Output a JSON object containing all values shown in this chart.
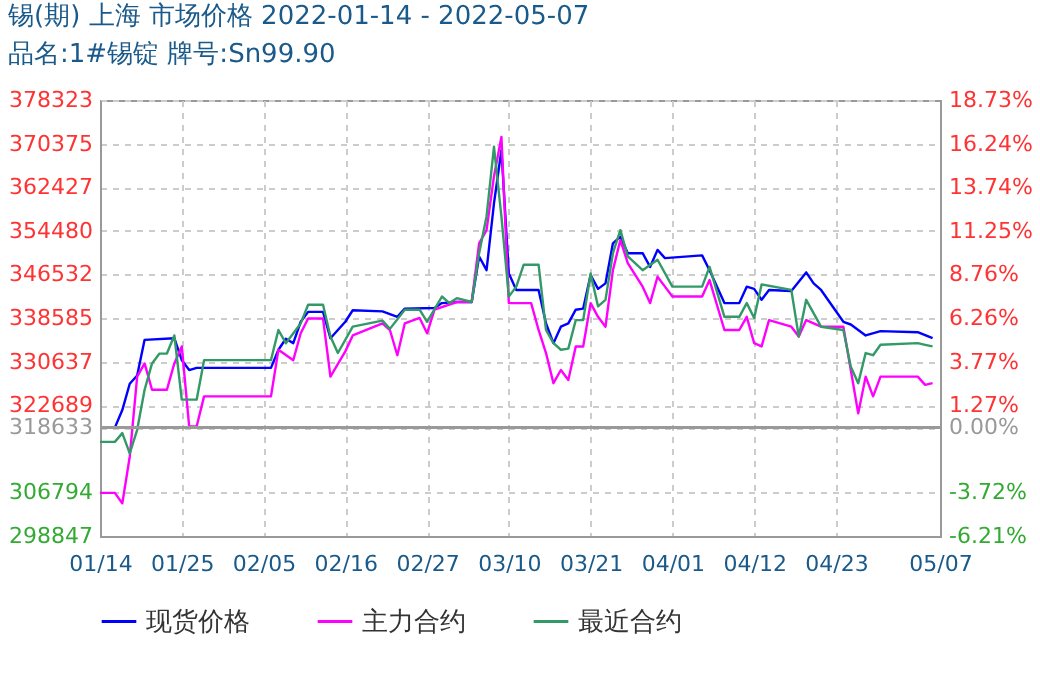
{
  "chart_data": {
    "type": "line",
    "title": "锡(期) 上海 市场价格 2022-01-14 - 2022-05-07",
    "subtitle": "品名:1#锡锭 牌号:Sn99.90",
    "xlim": [
      "2022-01-14",
      "2022-05-07"
    ],
    "xticks": [
      {
        "value": "2022-01-14",
        "label": "01/14"
      },
      {
        "value": "2022-01-25",
        "label": "01/25"
      },
      {
        "value": "2022-02-05",
        "label": "02/05"
      },
      {
        "value": "2022-02-16",
        "label": "02/16"
      },
      {
        "value": "2022-02-27",
        "label": "02/27"
      },
      {
        "value": "2022-03-10",
        "label": "03/10"
      },
      {
        "value": "2022-03-21",
        "label": "03/21"
      },
      {
        "value": "2022-04-01",
        "label": "04/01"
      },
      {
        "value": "2022-04-12",
        "label": "04/12"
      },
      {
        "value": "2022-04-23",
        "label": "04/23"
      },
      {
        "value": "2022-05-07",
        "label": "05/07"
      }
    ],
    "ylim": [
      298847,
      378323
    ],
    "yticks": [
      298847,
      306794,
      318633,
      322689,
      330637,
      338585,
      346532,
      354480,
      362427,
      370375,
      378323
    ],
    "y2lim": [
      -6.21,
      18.73
    ],
    "y2ticks": [
      {
        "value": -6.21,
        "label": "-6.21%"
      },
      {
        "value": -3.72,
        "label": "-3.72%"
      },
      {
        "value": 0,
        "label": "0.00%"
      },
      {
        "value": 1.27,
        "label": "1.27%"
      },
      {
        "value": 3.77,
        "label": "3.77%"
      },
      {
        "value": 6.26,
        "label": "6.26%"
      },
      {
        "value": 8.76,
        "label": "8.76%"
      },
      {
        "value": 11.25,
        "label": "11.25%"
      },
      {
        "value": 13.74,
        "label": "13.74%"
      },
      {
        "value": 16.24,
        "label": "16.24%"
      },
      {
        "value": 18.73,
        "label": "18.73%"
      }
    ],
    "ref_lines": [
      {
        "axis": "y2",
        "value": 0,
        "color": "#999999"
      }
    ],
    "grid": true,
    "legend": "bottom",
    "marker": "none",
    "line_style": "solid",
    "series": [
      {
        "name": "现货价格",
        "color": "#0000ff",
        "x": [
          "2022-01-14",
          "2022-01-16",
          "2022-01-17",
          "2022-01-18",
          "2022-01-19",
          "2022-01-20",
          "2022-01-24",
          "2022-01-25",
          "2022-01-26",
          "2022-01-27",
          "2022-02-06",
          "2022-02-07",
          "2022-02-08",
          "2022-02-09",
          "2022-02-10",
          "2022-02-11",
          "2022-02-13",
          "2022-02-14",
          "2022-02-16",
          "2022-02-17",
          "2022-02-21",
          "2022-02-23",
          "2022-02-24",
          "2022-02-28",
          "2022-03-01",
          "2022-03-03",
          "2022-03-05",
          "2022-03-06",
          "2022-03-07",
          "2022-03-08",
          "2022-03-09",
          "2022-03-10",
          "2022-03-11",
          "2022-03-14",
          "2022-03-15",
          "2022-03-16",
          "2022-03-17",
          "2022-03-18",
          "2022-03-19",
          "2022-03-20",
          "2022-03-21",
          "2022-03-22",
          "2022-03-23",
          "2022-03-24",
          "2022-03-25",
          "2022-03-26",
          "2022-03-28",
          "2022-03-29",
          "2022-03-30",
          "2022-03-31",
          "2022-04-05",
          "2022-04-06",
          "2022-04-08",
          "2022-04-10",
          "2022-04-11",
          "2022-04-12",
          "2022-04-13",
          "2022-04-14",
          "2022-04-17",
          "2022-04-19",
          "2022-04-20",
          "2022-04-21",
          "2022-04-24",
          "2022-04-25",
          "2022-04-27",
          "2022-04-29",
          "2022-05-04",
          "2022-05-06"
        ],
        "values": [
          318600,
          318600,
          321800,
          326600,
          328100,
          334600,
          334900,
          330900,
          329100,
          329500,
          329500,
          332800,
          334800,
          334000,
          337900,
          339700,
          339700,
          334900,
          337900,
          340000,
          339800,
          338800,
          340300,
          340400,
          341300,
          341500,
          341500,
          349800,
          347300,
          359500,
          369200,
          346700,
          343700,
          343700,
          337600,
          334000,
          337000,
          337600,
          340100,
          340300,
          346400,
          343900,
          344900,
          352200,
          353400,
          350400,
          350400,
          347900,
          351000,
          349500,
          350000,
          347300,
          341300,
          341300,
          344300,
          343900,
          341900,
          343700,
          343500,
          346900,
          344900,
          343700,
          337900,
          337400,
          335400,
          336200,
          336000,
          334900
        ]
      },
      {
        "name": "主力合约",
        "color": "#ff00ff",
        "x": [
          "2022-01-14",
          "2022-01-16",
          "2022-01-17",
          "2022-01-18",
          "2022-01-19",
          "2022-01-20",
          "2022-01-21",
          "2022-01-23",
          "2022-01-24",
          "2022-01-25",
          "2022-01-26",
          "2022-01-27",
          "2022-01-28",
          "2022-02-06",
          "2022-02-07",
          "2022-02-09",
          "2022-02-10",
          "2022-02-11",
          "2022-02-13",
          "2022-02-14",
          "2022-02-16",
          "2022-02-17",
          "2022-02-21",
          "2022-02-22",
          "2022-02-23",
          "2022-02-24",
          "2022-02-26",
          "2022-02-27",
          "2022-02-28",
          "2022-03-03",
          "2022-03-05",
          "2022-03-06",
          "2022-03-07",
          "2022-03-08",
          "2022-03-09",
          "2022-03-10",
          "2022-03-13",
          "2022-03-14",
          "2022-03-15",
          "2022-03-16",
          "2022-03-17",
          "2022-03-18",
          "2022-03-19",
          "2022-03-20",
          "2022-03-21",
          "2022-03-22",
          "2022-03-23",
          "2022-03-24",
          "2022-03-25",
          "2022-03-26",
          "2022-03-28",
          "2022-03-29",
          "2022-03-30",
          "2022-03-31",
          "2022-04-01",
          "2022-04-05",
          "2022-04-06",
          "2022-04-08",
          "2022-04-10",
          "2022-04-11",
          "2022-04-12",
          "2022-04-13",
          "2022-04-14",
          "2022-04-17",
          "2022-04-18",
          "2022-04-19",
          "2022-04-21",
          "2022-04-24",
          "2022-04-25",
          "2022-04-26",
          "2022-04-27",
          "2022-04-28",
          "2022-04-29",
          "2022-05-04",
          "2022-05-05",
          "2022-05-06"
        ],
        "values": [
          306700,
          306700,
          304800,
          313300,
          327900,
          330300,
          325500,
          325500,
          330300,
          333400,
          318800,
          318800,
          324300,
          324300,
          332800,
          330900,
          335800,
          338500,
          338500,
          327900,
          332500,
          335400,
          337600,
          336400,
          331800,
          337600,
          338600,
          335800,
          340100,
          341500,
          341500,
          352200,
          354600,
          364400,
          371600,
          341300,
          341300,
          336400,
          332200,
          326700,
          329100,
          327300,
          333400,
          333400,
          341300,
          338800,
          337000,
          347300,
          352800,
          348600,
          344300,
          341300,
          346100,
          344300,
          342500,
          342500,
          345500,
          336400,
          336400,
          338800,
          334000,
          333400,
          338200,
          337000,
          335200,
          338200,
          337000,
          337000,
          329100,
          321200,
          327900,
          324300,
          327900,
          327900,
          326400,
          326700
        ]
      },
      {
        "name": "最近合约",
        "color": "#339966",
        "x": [
          "2022-01-14",
          "2022-01-16",
          "2022-01-17",
          "2022-01-18",
          "2022-01-19",
          "2022-01-20",
          "2022-01-21",
          "2022-01-22",
          "2022-01-23",
          "2022-01-24",
          "2022-01-25",
          "2022-01-27",
          "2022-01-28",
          "2022-02-06",
          "2022-02-07",
          "2022-02-08",
          "2022-02-10",
          "2022-02-11",
          "2022-02-13",
          "2022-02-14",
          "2022-02-15",
          "2022-02-17",
          "2022-02-21",
          "2022-02-22",
          "2022-02-24",
          "2022-02-26",
          "2022-02-27",
          "2022-03-01",
          "2022-03-02",
          "2022-03-03",
          "2022-03-05",
          "2022-03-06",
          "2022-03-07",
          "2022-03-08",
          "2022-03-09",
          "2022-03-10",
          "2022-03-11",
          "2022-03-12",
          "2022-03-14",
          "2022-03-15",
          "2022-03-16",
          "2022-03-17",
          "2022-03-18",
          "2022-03-19",
          "2022-03-20",
          "2022-03-21",
          "2022-03-22",
          "2022-03-23",
          "2022-03-24",
          "2022-03-25",
          "2022-03-26",
          "2022-03-28",
          "2022-03-30",
          "2022-04-01",
          "2022-04-05",
          "2022-04-06",
          "2022-04-08",
          "2022-04-10",
          "2022-04-11",
          "2022-04-12",
          "2022-04-13",
          "2022-04-17",
          "2022-04-18",
          "2022-04-19",
          "2022-04-21",
          "2022-04-24",
          "2022-04-25",
          "2022-04-26",
          "2022-04-27",
          "2022-04-28",
          "2022-04-29",
          "2022-05-04",
          "2022-05-05",
          "2022-05-06"
        ],
        "values": [
          316000,
          316000,
          317600,
          313900,
          318200,
          325500,
          330300,
          332100,
          332100,
          335400,
          323700,
          323700,
          330900,
          330900,
          336400,
          334000,
          337600,
          341000,
          341000,
          335200,
          332200,
          337000,
          338100,
          336600,
          340100,
          340100,
          337900,
          342500,
          341300,
          342200,
          341500,
          350400,
          357100,
          369800,
          357100,
          342500,
          344300,
          348300,
          348300,
          336400,
          334000,
          332800,
          333000,
          338200,
          338200,
          346700,
          340700,
          341900,
          350400,
          354600,
          349800,
          347300,
          349200,
          344300,
          344300,
          347900,
          338800,
          338800,
          341300,
          338600,
          344700,
          343700,
          335200,
          341900,
          337000,
          336400,
          329700,
          326700,
          332200,
          331800,
          333700,
          334000,
          333700,
          333400
        ]
      }
    ]
  }
}
